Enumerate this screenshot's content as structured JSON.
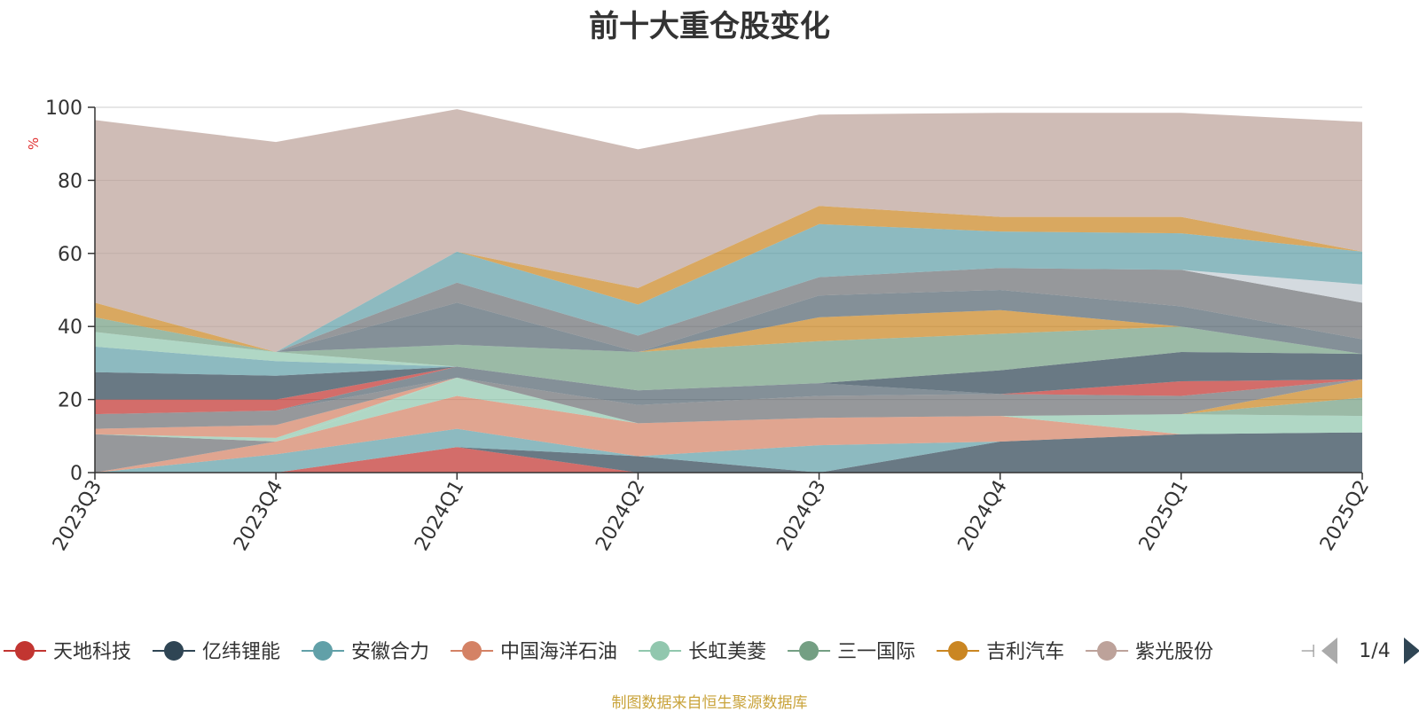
{
  "title": "前十大重仓股变化",
  "source_note": "制图数据来自恒生聚源数据库",
  "legend_page": "1/4",
  "legend_overflow_glyph": "⊣",
  "chart_data": {
    "type": "area",
    "stacked": true,
    "title": "前十大重仓股变化",
    "ylabel": "%",
    "ylim": [
      0,
      100
    ],
    "yticks": [
      0,
      20,
      40,
      60,
      80,
      100
    ],
    "grid": true,
    "legend_position": "bottom",
    "categories": [
      "2023Q3",
      "2023Q4",
      "2024Q1",
      "2024Q2",
      "2024Q3",
      "2024Q4",
      "2025Q1",
      "2025Q2"
    ],
    "series": [
      {
        "name": "天地科技",
        "color": "#c23531",
        "values": [
          0,
          0,
          7,
          0,
          0,
          0,
          0,
          0
        ]
      },
      {
        "name": "亿纬锂能",
        "color": "#2f4554",
        "values": [
          0,
          0,
          0,
          4.5,
          0,
          8.5,
          10.5,
          11
        ]
      },
      {
        "name": "安徽合力",
        "color": "#61a0a8",
        "values": [
          0,
          5,
          5,
          0,
          7.5,
          0,
          0,
          0
        ]
      },
      {
        "name": "中国海洋石油",
        "color": "#d48265",
        "values": [
          0,
          3.5,
          9,
          9,
          7.5,
          7,
          0,
          0
        ]
      },
      {
        "name": "长虹美菱",
        "color": "#91c7ae",
        "values": [
          0,
          0,
          5,
          0,
          0,
          0,
          5.5,
          4.5
        ]
      },
      {
        "name": "三一国际",
        "color": "#749f83",
        "values": [
          0,
          0,
          0,
          0,
          0,
          0,
          0,
          5
        ]
      },
      {
        "name": "吉利汽车",
        "color": "#ca8622",
        "values": [
          0,
          0,
          0,
          0,
          0,
          0,
          0,
          5
        ]
      },
      {
        "name": "紫光股份",
        "color": "#bda29a",
        "values": [
          0,
          0,
          0,
          0,
          0,
          0,
          0,
          0
        ]
      },
      {
        "name": "",
        "color": "#6e7074",
        "values": [
          10.5,
          0,
          0,
          0,
          0,
          0,
          0,
          0
        ]
      },
      {
        "name": "",
        "color": "#546570",
        "values": [
          0,
          0,
          0,
          0,
          0,
          0,
          0,
          0
        ]
      },
      {
        "name": "",
        "color": "#c4ccd3",
        "values": [
          0,
          0,
          0,
          0,
          0,
          0,
          0,
          0
        ]
      },
      {
        "name": "",
        "color": "#61a0a8",
        "values": [
          0,
          0,
          0,
          0,
          0,
          0,
          0,
          0
        ]
      },
      {
        "name": "",
        "color": "#91c7ae",
        "values": [
          0,
          1,
          0,
          0,
          0,
          0,
          0,
          0
        ]
      },
      {
        "name": "",
        "color": "#d48265",
        "values": [
          1.5,
          3.5,
          0,
          0,
          0,
          0,
          0,
          0
        ]
      },
      {
        "name": "",
        "color": "#6e7074",
        "values": [
          4,
          4,
          0,
          5,
          6,
          6,
          5,
          0
        ]
      },
      {
        "name": "",
        "color": "#546570",
        "values": [
          0,
          0,
          3,
          4,
          3.5,
          0,
          0,
          0
        ]
      },
      {
        "name": "",
        "color": "#c23531",
        "values": [
          4,
          3,
          0,
          0,
          0,
          0,
          4,
          0
        ]
      },
      {
        "name": "",
        "color": "#2f4554",
        "values": [
          7.5,
          6.5,
          0,
          0,
          0,
          6.5,
          8,
          7
        ]
      },
      {
        "name": "",
        "color": "#61a0a8",
        "values": [
          7,
          4,
          0,
          0,
          0,
          0,
          0,
          0
        ]
      },
      {
        "name": "",
        "color": "#91c7ae",
        "values": [
          4,
          2.5,
          0,
          0,
          0,
          0,
          0,
          0
        ]
      },
      {
        "name": "",
        "color": "#749f83",
        "values": [
          4,
          0,
          6,
          10.5,
          11.5,
          10,
          7,
          0
        ]
      },
      {
        "name": "",
        "color": "#ca8622",
        "values": [
          4,
          0,
          0,
          0,
          6.5,
          6.5,
          0,
          0
        ]
      },
      {
        "name": "",
        "color": "#546570",
        "values": [
          0,
          0,
          11.5,
          0,
          6,
          5.5,
          5.5,
          4
        ]
      },
      {
        "name": "",
        "color": "#6e7074",
        "values": [
          0,
          0,
          5.5,
          4.5,
          5,
          6,
          10,
          10
        ]
      },
      {
        "name": "",
        "color": "#c4ccd3",
        "values": [
          0,
          0,
          0,
          0,
          0,
          0,
          0,
          5
        ]
      },
      {
        "name": "",
        "color": "#61a0a8",
        "values": [
          0,
          0,
          8.5,
          8.5,
          14.5,
          10,
          10,
          9
        ]
      },
      {
        "name": "",
        "color": "#ca8622",
        "values": [
          0,
          0,
          0,
          4.5,
          5,
          4,
          4.5,
          0
        ]
      },
      {
        "name": "",
        "color": "#bda29a",
        "values": [
          50,
          57.5,
          39,
          38,
          25,
          28.5,
          28.5,
          35.5
        ]
      }
    ]
  }
}
